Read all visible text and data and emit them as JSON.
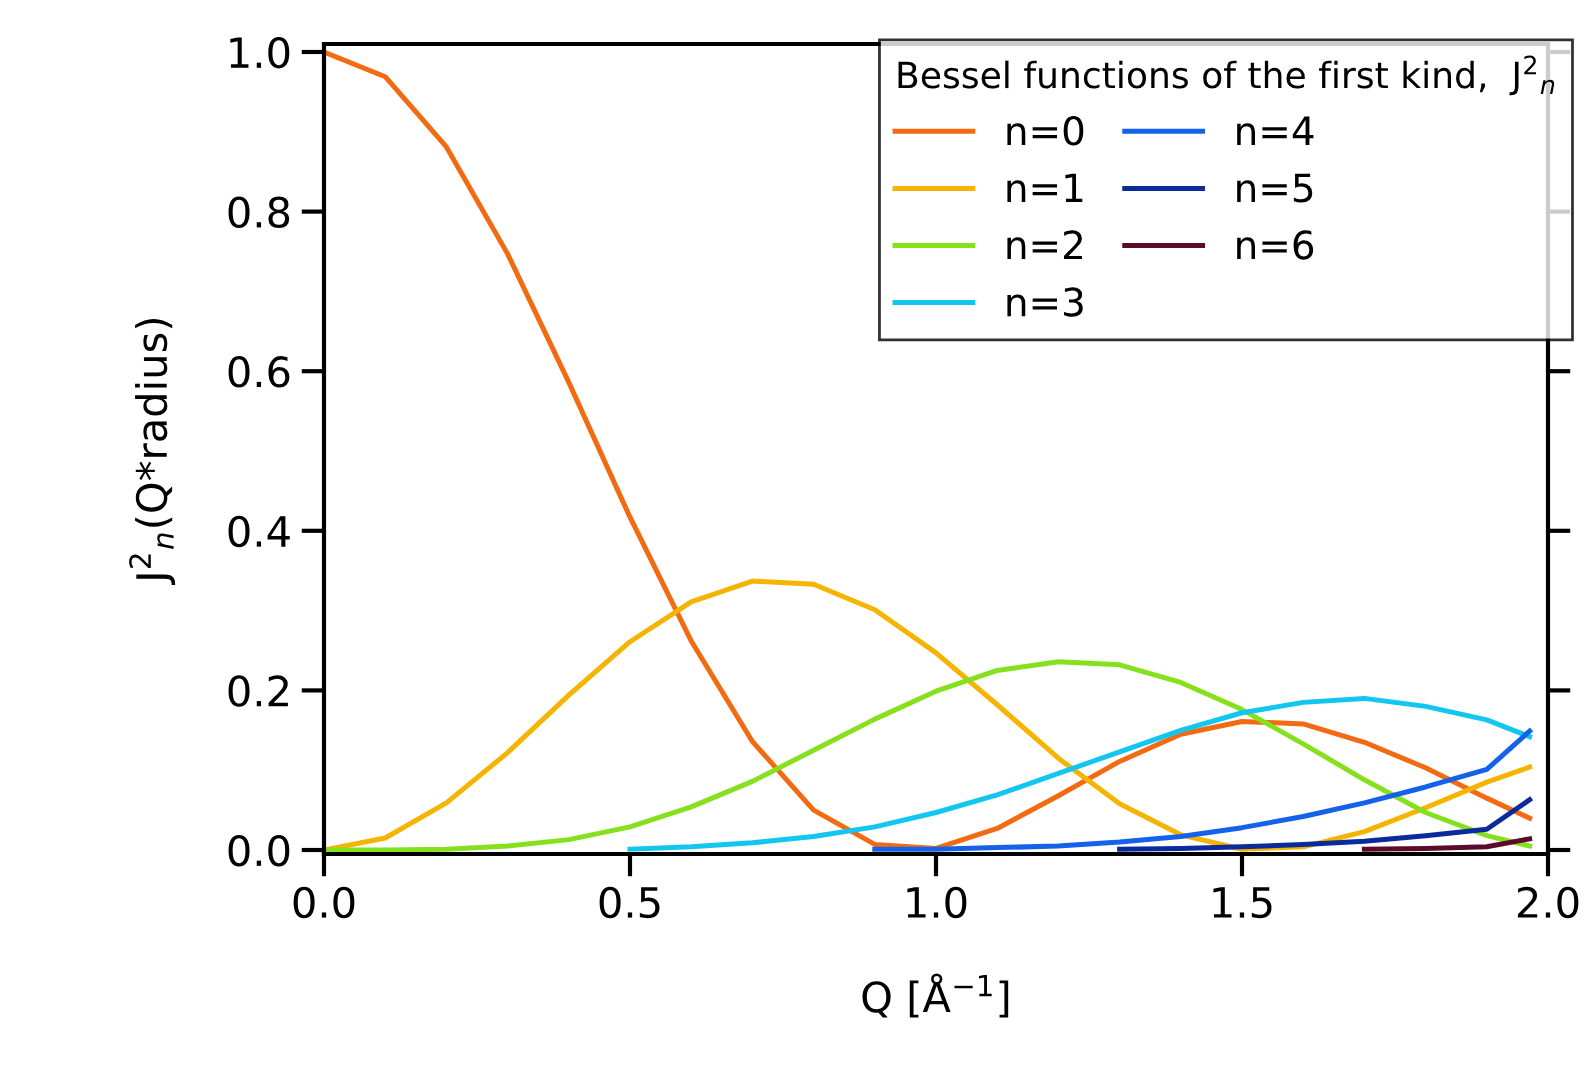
{
  "chart_data": {
    "type": "line",
    "xlabel": "Q [Å$^{−1}$]",
    "ylabel": "J$^{2}$$_{n}$(Q*radius)",
    "legend_title": "Bessel functions of the first kind,  J$^{2}$$_{n}$",
    "x": [
      0,
      0.1,
      0.2,
      0.3,
      0.4,
      0.5,
      0.6,
      0.7,
      0.8,
      0.9,
      1.0,
      1.1,
      1.2,
      1.3,
      1.4,
      1.5,
      1.6,
      1.7,
      1.8,
      1.9,
      1.97
    ],
    "series": [
      {
        "name": "n=0",
        "color": "#f26b12",
        "values": [
          1,
          0.969,
          0.881,
          0.747,
          0.586,
          0.417,
          0.262,
          0.136,
          0.05,
          0.007,
          0.002,
          0.027,
          0.068,
          0.111,
          0.145,
          0.161,
          0.158,
          0.135,
          0.103,
          0.065,
          0.04
        ]
      },
      {
        "name": "n=1",
        "color": "#f5b400",
        "values": [
          0,
          0.015,
          0.059,
          0.122,
          0.194,
          0.261,
          0.311,
          0.337,
          0.333,
          0.301,
          0.247,
          0.182,
          0.115,
          0.058,
          0.019,
          0.001,
          0.004,
          0.023,
          0.053,
          0.085,
          0.104
        ]
      },
      {
        "name": "n=2",
        "color": "#86e01e",
        "values": [
          0,
          0,
          0.001,
          0.005,
          0.013,
          0.029,
          0.054,
          0.086,
          0.125,
          0.164,
          0.199,
          0.225,
          0.236,
          0.232,
          0.21,
          0.176,
          0.133,
          0.088,
          0.047,
          0.018,
          0.005
        ]
      },
      {
        "name": "n=3",
        "color": "#12c6f0",
        "values": [
          null,
          null,
          null,
          null,
          null,
          0.001,
          0.004,
          0.009,
          0.017,
          0.029,
          0.047,
          0.069,
          0.096,
          0.123,
          0.15,
          0.172,
          0.185,
          0.19,
          0.18,
          0.163,
          0.142
        ]
      },
      {
        "name": "n=4",
        "color": "#1462ea",
        "values": [
          null,
          null,
          null,
          null,
          null,
          null,
          null,
          null,
          null,
          0.001,
          0.001,
          0.003,
          0.005,
          0.01,
          0.017,
          0.028,
          0.042,
          0.059,
          0.079,
          0.101,
          0.149
        ]
      },
      {
        "name": "n=5",
        "color": "#0b2a9c",
        "values": [
          null,
          null,
          null,
          null,
          null,
          null,
          null,
          null,
          null,
          null,
          null,
          null,
          null,
          0.001,
          0.002,
          0.004,
          0.007,
          0.011,
          0.018,
          0.026,
          0.063
        ]
      },
      {
        "name": "n=6",
        "color": "#5c0b2c",
        "values": [
          null,
          null,
          null,
          null,
          null,
          null,
          null,
          null,
          null,
          null,
          null,
          null,
          null,
          null,
          null,
          null,
          null,
          0.001,
          0.002,
          0.004,
          0.014
        ]
      }
    ],
    "xlim": [
      0,
      2.0
    ],
    "xticks": [
      {
        "value": 0,
        "label": "0.0"
      },
      0.5,
      {
        "value": 1,
        "label": "1.0"
      },
      1.5,
      {
        "value": 2,
        "label": "2.0"
      }
    ],
    "ylim": [
      -0.005,
      1.01
    ],
    "yticks": [
      {
        "value": 0,
        "label": "0.0"
      },
      0.2,
      0.4,
      0.6,
      0.8,
      {
        "value": 1,
        "label": "1.0"
      }
    ],
    "grid": false,
    "legend": "top right",
    "marker": "none",
    "line_style": "solid"
  }
}
